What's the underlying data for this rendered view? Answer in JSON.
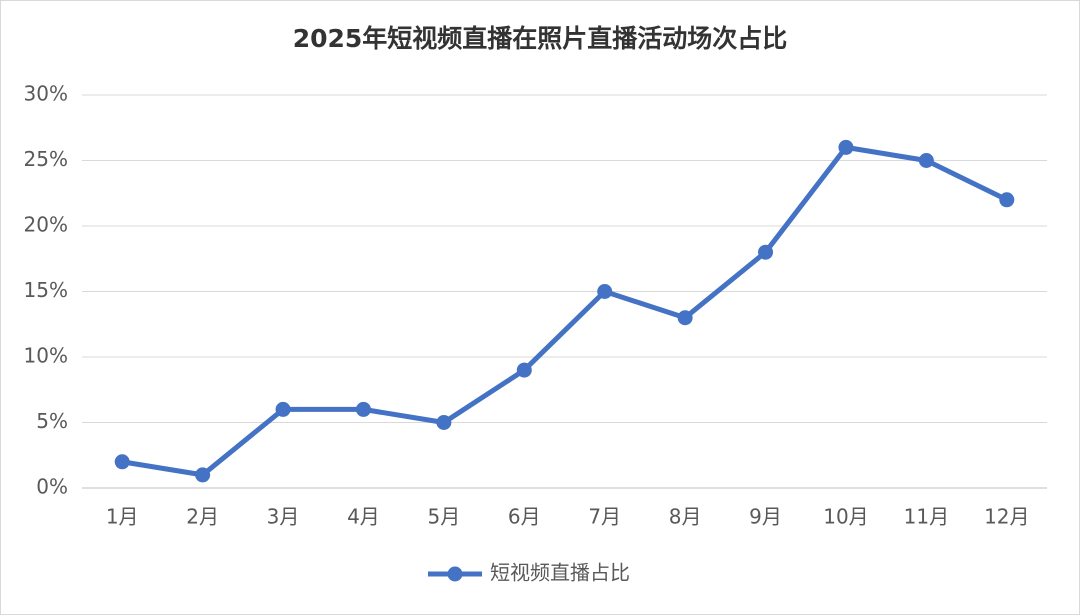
{
  "chart_data": {
    "type": "line",
    "title": "2025年短视频直播在照片直播活动场次占比",
    "categories": [
      "1月",
      "2月",
      "3月",
      "4月",
      "5月",
      "6月",
      "7月",
      "8月",
      "9月",
      "10月",
      "11月",
      "12月"
    ],
    "series": [
      {
        "name": "短视频直播占比",
        "color": "#4472c4",
        "values": [
          2,
          1,
          6,
          6,
          5,
          9,
          15,
          13,
          18,
          26,
          25,
          22
        ]
      }
    ],
    "ylim": [
      0,
      30
    ],
    "yticks": [
      {
        "value": 0,
        "label": "0%"
      },
      {
        "value": 5,
        "label": "5%"
      },
      {
        "value": 10,
        "label": "10%"
      },
      {
        "value": 15,
        "label": "15%"
      },
      {
        "value": 20,
        "label": "20%"
      },
      {
        "value": 25,
        "label": "25%"
      },
      {
        "value": 30,
        "label": "30%"
      }
    ],
    "grid": true,
    "legend": "bottom"
  }
}
